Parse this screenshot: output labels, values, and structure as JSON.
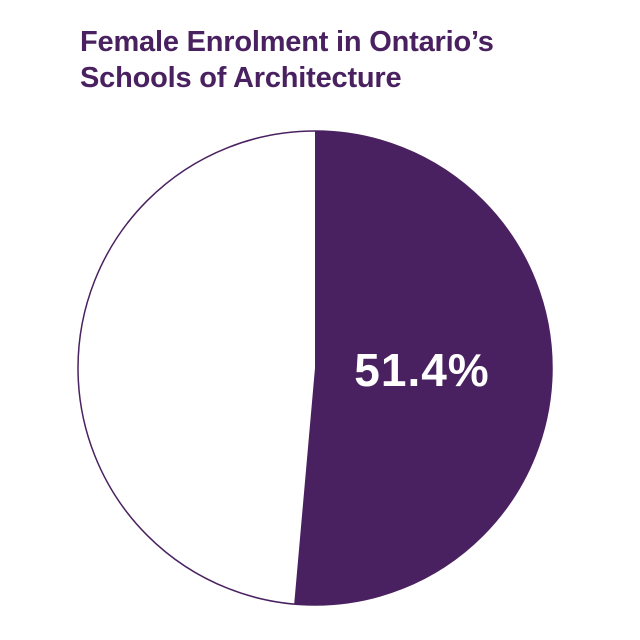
{
  "chart_data": {
    "type": "pie",
    "title_lines": [
      "Female Enrolment in Ontario’s",
      "Schools of Architecture"
    ],
    "slices": [
      {
        "label": "51.4%",
        "value": 51.4,
        "color": "#4a2160"
      },
      {
        "label": "",
        "value": 48.6,
        "color": "#ffffff"
      }
    ],
    "outline_color": "#4a2160",
    "label_color": "#ffffff",
    "title_color": "#4a2160"
  }
}
